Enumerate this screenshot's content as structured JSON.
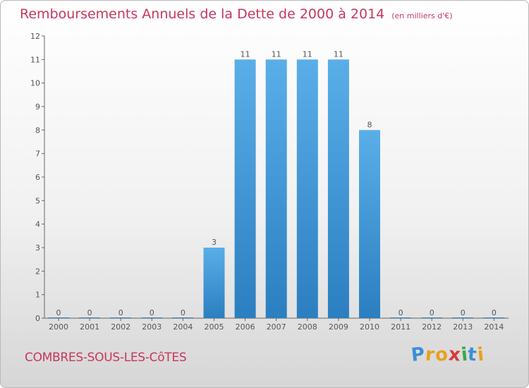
{
  "chart_data": {
    "type": "bar",
    "title": "Remboursements Annuels de la Dette de 2000 à 2014",
    "subtitle": "(en milliers d'€)",
    "categories": [
      "2000",
      "2001",
      "2002",
      "2003",
      "2004",
      "2005",
      "2006",
      "2007",
      "2008",
      "2009",
      "2010",
      "2011",
      "2012",
      "2013",
      "2014"
    ],
    "values": [
      0,
      0,
      0,
      0,
      0,
      3,
      11,
      11,
      11,
      11,
      8,
      0,
      0,
      0,
      0
    ],
    "ylim": [
      0,
      12
    ],
    "yticks": [
      0,
      1,
      2,
      3,
      4,
      5,
      6,
      7,
      8,
      9,
      10,
      11,
      12
    ],
    "grid": false,
    "bar_color_top": "#5aaee8",
    "bar_color_bottom": "#2b7fc0"
  },
  "footer": {
    "town": "COMBRES-SOUS-LES-CôTES",
    "logo_letters": [
      {
        "ch": "P",
        "color": "#3a8fd6"
      },
      {
        "ch": "r",
        "color": "#e8a11d"
      },
      {
        "ch": "o",
        "color": "#e8a11d"
      },
      {
        "ch": "x",
        "color": "#d43b3b"
      },
      {
        "ch": "i",
        "color": "#3aa84a"
      },
      {
        "ch": "t",
        "color": "#3a8fd6"
      },
      {
        "ch": "i",
        "color": "#e8a11d"
      }
    ]
  },
  "colors": {
    "title": "#c8365f",
    "axis": "#555555"
  }
}
